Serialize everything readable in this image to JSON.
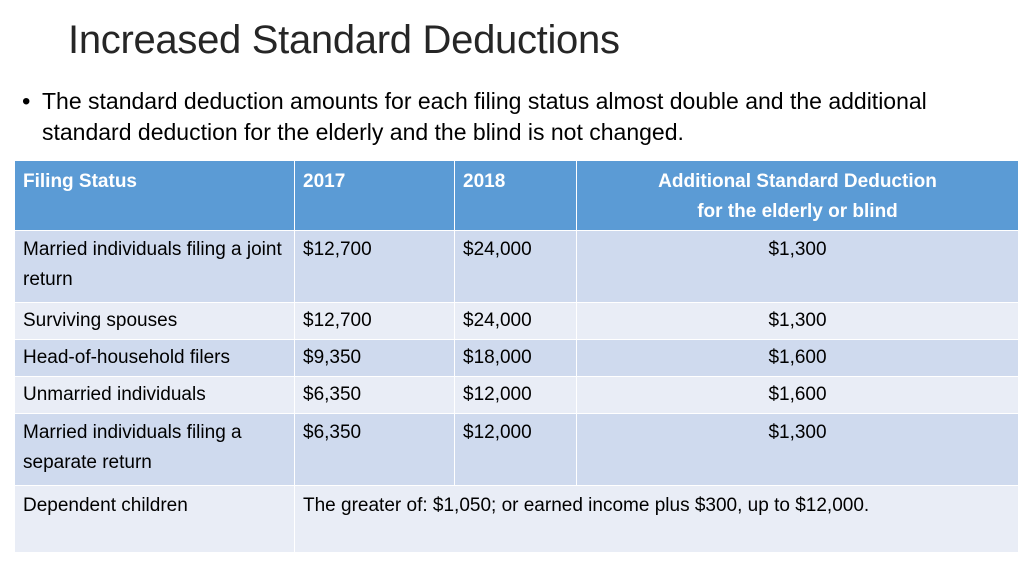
{
  "slide": {
    "title": "Increased Standard Deductions",
    "bullet": "The standard deduction amounts for each filing status almost double and the additional standard deduction for the elderly and the blind is not changed."
  },
  "table": {
    "headers": {
      "filing_status": "Filing Status",
      "year_2017": "2017",
      "year_2018": "2018",
      "additional_line1": "Additional Standard Deduction",
      "additional_line2": "for the elderly or blind"
    },
    "rows": [
      {
        "filing_status": "Married individuals filing a joint return",
        "y2017": "$12,700",
        "y2018": "$24,000",
        "additional": "$1,300"
      },
      {
        "filing_status": "Surviving spouses",
        "y2017": "$12,700",
        "y2018": "$24,000",
        "additional": "$1,300"
      },
      {
        "filing_status": "Head-of-household filers",
        "y2017": "$9,350",
        "y2018": "$18,000",
        "additional": "$1,600"
      },
      {
        "filing_status": "Unmarried individuals",
        "y2017": "$6,350",
        "y2018": "$12,000",
        "additional": "$1,600"
      },
      {
        "filing_status": "Married individuals filing a separate return",
        "y2017": "$6,350",
        "y2018": "$12,000",
        "additional": "$1,300"
      }
    ],
    "dependent_row": {
      "filing_status": "Dependent children",
      "note": "The greater of:  $1,050; or earned income plus $300, up to $12,000."
    }
  },
  "colors": {
    "header_bg": "#5b9bd5",
    "row_dark": "#cfdaee",
    "row_light": "#e9edf6",
    "title_text": "#262626"
  }
}
